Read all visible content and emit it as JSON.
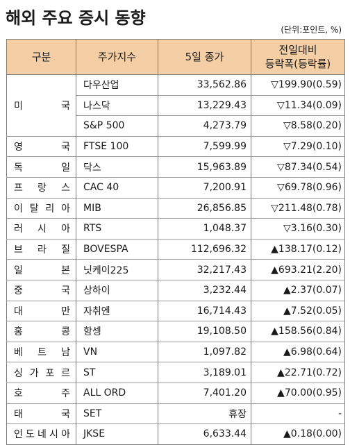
{
  "title": "해외 주요 증시 동향",
  "unit": "(단위:포인트, %)",
  "headers": {
    "category": "구분",
    "index": "주가지수",
    "close": "5일 종가",
    "change_line1": "전일대비",
    "change_line2": "등락폭(등락률)"
  },
  "rows": [
    {
      "country": "미국",
      "index": "다우산업",
      "close": "33,562.86",
      "change": "▽199.90(0.59)"
    },
    {
      "country": "",
      "index": "나스닥",
      "close": "13,229.43",
      "change": "▽11.34(0.09)"
    },
    {
      "country": "",
      "index": "S&P 500",
      "close": "4,273.79",
      "change": "▽8.58(0.20)"
    },
    {
      "country": "영국",
      "index": "FTSE 100",
      "close": "7,599.99",
      "change": "▽7.29(0.10)"
    },
    {
      "country": "독일",
      "index": "닥스",
      "close": "15,963.89",
      "change": "▽87.34(0.54)"
    },
    {
      "country": "프랑스",
      "index": "CAC 40",
      "close": "7,200.91",
      "change": "▽69.78(0.96)"
    },
    {
      "country": "이탈리아",
      "index": "MIB",
      "close": "26,856.85",
      "change": "▽211.48(0.78)"
    },
    {
      "country": "러시아",
      "index": "RTS",
      "close": "1,048.37",
      "change": "▽3.16(0.30)"
    },
    {
      "country": "브라질",
      "index": "BOVESPA",
      "close": "112,696.32",
      "change": "▲138.17(0.12)"
    },
    {
      "country": "일본",
      "index": "닛케이225",
      "close": "32,217.43",
      "change": "▲693.21(2.20)"
    },
    {
      "country": "중국",
      "index": "상하이",
      "close": "3,232.44",
      "change": "▲2.37(0.07)"
    },
    {
      "country": "대만",
      "index": "자취엔",
      "close": "16,714.43",
      "change": "▲7.52(0.05)"
    },
    {
      "country": "홍콩",
      "index": "항셍",
      "close": "19,108.50",
      "change": "▲158.56(0.84)"
    },
    {
      "country": "베트남",
      "index": "VN",
      "close": "1,097.82",
      "change": "▲6.98(0.64)"
    },
    {
      "country": "싱가포르",
      "index": "ST",
      "close": "3,189.01",
      "change": "▲22.71(0.72)"
    },
    {
      "country": "호주",
      "index": "ALL ORD",
      "close": "7,401.20",
      "change": "▲70.00(0.95)"
    },
    {
      "country": "태국",
      "index": "SET",
      "close": "휴장",
      "change": "-"
    },
    {
      "country": "인도네시아",
      "index": "JKSE",
      "close": "6,633.44",
      "change": "▲0.18(0.00)"
    }
  ]
}
